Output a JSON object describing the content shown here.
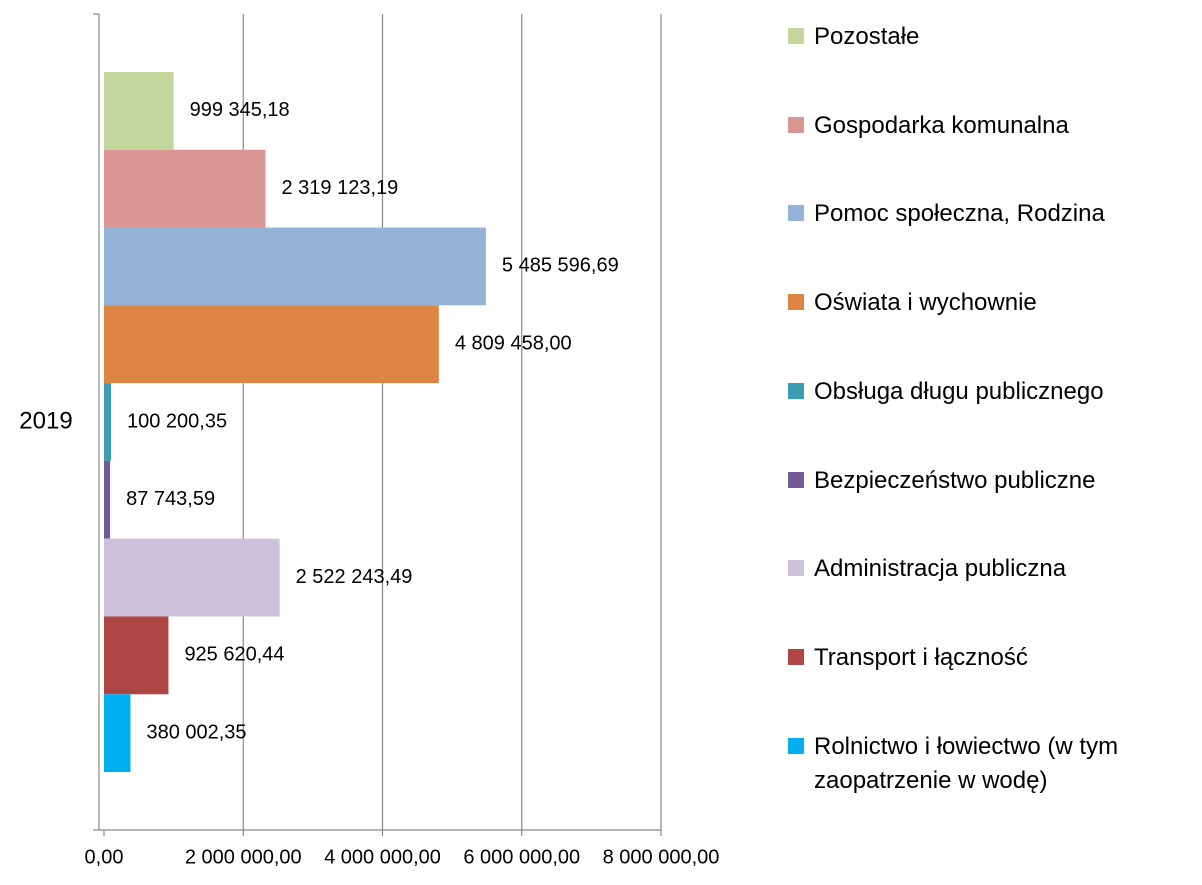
{
  "chart_data": {
    "type": "bar",
    "orientation": "horizontal",
    "categories": [
      "2019"
    ],
    "series": [
      {
        "name": "Pozostałe",
        "color": "#c3d69b",
        "values": [
          999345.18
        ],
        "value_labels": [
          "999 345,18"
        ]
      },
      {
        "name": "Gospodarka komunalna",
        "color": "#d99694",
        "values": [
          2319123.19
        ],
        "value_labels": [
          "2 319 123,19"
        ]
      },
      {
        "name": "Pomoc społeczna, Rodzina",
        "color": "#95b3d7",
        "values": [
          5485596.69
        ],
        "value_labels": [
          "5 485 596,69"
        ]
      },
      {
        "name": "Oświata i wychownie",
        "color": "#dd8644",
        "values": [
          4809458.0
        ],
        "value_labels": [
          "4 809 458,00"
        ]
      },
      {
        "name": "Obsługa długu publicznego",
        "color": "#3a9db3",
        "values": [
          100200.35
        ],
        "value_labels": [
          "100 200,35"
        ]
      },
      {
        "name": "Bezpieczeństwo publiczne",
        "color": "#745a96",
        "values": [
          87743.59
        ],
        "value_labels": [
          "87 743,59"
        ]
      },
      {
        "name": "Administracja publiczna",
        "color": "#ccc1da",
        "values": [
          2522243.49
        ],
        "value_labels": [
          "2 522 243,49"
        ]
      },
      {
        "name": "Transport i łączność",
        "color": "#ad4645",
        "values": [
          925620.44
        ],
        "value_labels": [
          "925 620,44"
        ]
      },
      {
        "name": "Rolnictwo i łowiectwo (w tym zaopatrzenie w wodę)",
        "color": "#00b0f0",
        "values": [
          380002.35
        ],
        "value_labels": [
          "380 002,35"
        ]
      }
    ],
    "xlim": [
      0,
      8000000
    ],
    "xticks": [
      {
        "value": 0,
        "label": "0,00"
      },
      {
        "value": 2000000,
        "label": "2 000 000,00"
      },
      {
        "value": 4000000,
        "label": "4 000 000,00"
      },
      {
        "value": 6000000,
        "label": "6 000 000,00"
      },
      {
        "value": 8000000,
        "label": "8 000 000,00"
      }
    ],
    "grid": true
  }
}
